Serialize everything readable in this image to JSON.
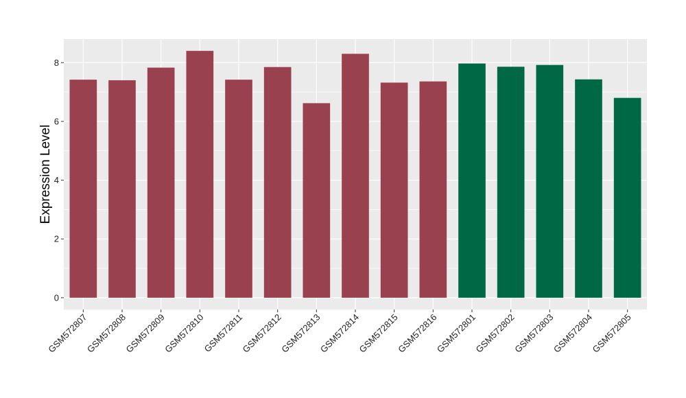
{
  "chart_data": {
    "type": "bar",
    "title": "",
    "xlabel": "",
    "ylabel": "Expression Level",
    "ylim": [
      -0.4,
      8.8
    ],
    "yticks": [
      0,
      2,
      4,
      6,
      8
    ],
    "grid": true,
    "categories": [
      "GSM572807",
      "GSM572808",
      "GSM572809",
      "GSM572810",
      "GSM572811",
      "GSM572812",
      "GSM572813",
      "GSM572814",
      "GSM572815",
      "GSM572816",
      "GSM572801",
      "GSM572802",
      "GSM572803",
      "GSM572804",
      "GSM572805"
    ],
    "values": [
      7.42,
      7.4,
      7.83,
      8.4,
      7.42,
      7.85,
      6.62,
      8.3,
      7.32,
      7.36,
      7.97,
      7.86,
      7.92,
      7.43,
      6.8
    ],
    "bar_colors": [
      "#9a4150",
      "#9a4150",
      "#9a4150",
      "#9a4150",
      "#9a4150",
      "#9a4150",
      "#9a4150",
      "#9a4150",
      "#9a4150",
      "#9a4150",
      "#006845",
      "#006845",
      "#006845",
      "#006845",
      "#006845"
    ],
    "panel_background": "#ebebeb",
    "grid_color": "#ffffff"
  }
}
